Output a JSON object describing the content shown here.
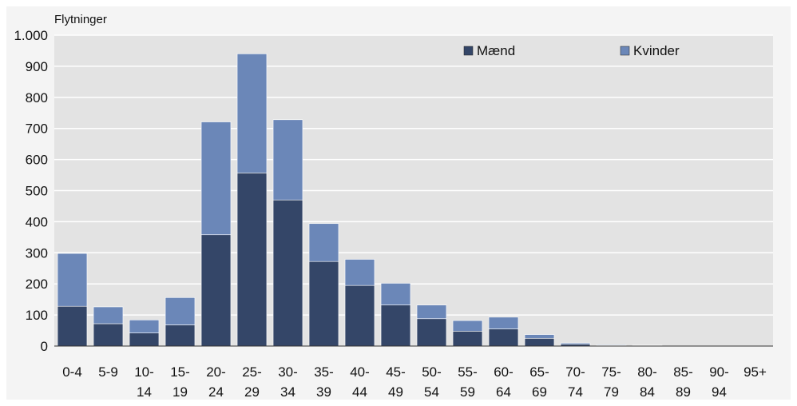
{
  "colors": {
    "men": "#344668",
    "women": "#6b87b8",
    "plot_bg": "#e3e3e3",
    "outer_bg": "#f4f4f4",
    "gridline": "#ffffff",
    "border": "#ffffff"
  },
  "chart_data": {
    "type": "bar",
    "stacked": true,
    "ylabel": "Flytninger",
    "ylim": [
      0,
      1000
    ],
    "yticks": [
      0,
      100,
      200,
      300,
      400,
      500,
      600,
      700,
      800,
      900,
      1000
    ],
    "ytick_labels": [
      "0",
      "100",
      "200",
      "300",
      "400",
      "500",
      "600",
      "700",
      "800",
      "900",
      "1.000"
    ],
    "grid": true,
    "legend_position": "top-right",
    "categories": [
      [
        "0-4"
      ],
      [
        "5-9"
      ],
      [
        "10-",
        "14"
      ],
      [
        "15-",
        "19"
      ],
      [
        "20-",
        "24"
      ],
      [
        "25-",
        "29"
      ],
      [
        "30-",
        "34"
      ],
      [
        "35-",
        "39"
      ],
      [
        "40-",
        "44"
      ],
      [
        "45-",
        "49"
      ],
      [
        "50-",
        "54"
      ],
      [
        "55-",
        "59"
      ],
      [
        "60-",
        "64"
      ],
      [
        "65-",
        "69"
      ],
      [
        "70-",
        "74"
      ],
      [
        "75-",
        "79"
      ],
      [
        "80-",
        "84"
      ],
      [
        "85-",
        "89"
      ],
      [
        "90-",
        "94"
      ],
      [
        "95+"
      ]
    ],
    "series": [
      {
        "name": "Mænd",
        "values": [
          128,
          72,
          42,
          68,
          358,
          557,
          470,
          272,
          195,
          132,
          88,
          48,
          55,
          25,
          6,
          2,
          2,
          0,
          0,
          0
        ]
      },
      {
        "name": "Kvinder",
        "values": [
          170,
          54,
          42,
          88,
          363,
          383,
          258,
          122,
          84,
          70,
          44,
          34,
          38,
          12,
          4,
          2,
          1,
          0,
          0,
          0
        ]
      }
    ]
  }
}
